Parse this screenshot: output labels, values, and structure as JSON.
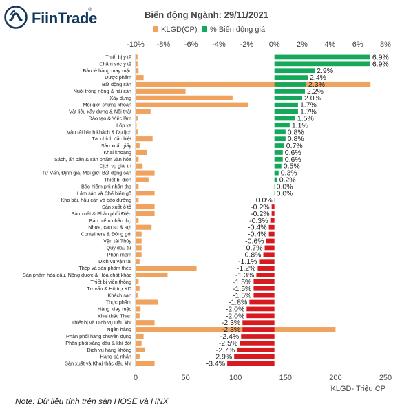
{
  "brand": {
    "name": "FiinTrade",
    "reg": "®"
  },
  "title": "Biến động Ngành: 29/11/2021",
  "note": "Note: Dữ liệu tính trên sàn HOSE và HNX",
  "colors": {
    "volume": "#f0a35e",
    "positive": "#14a85a",
    "negative": "#d71920",
    "brand": "#12375c"
  },
  "chart_data": {
    "type": "bar",
    "orientation": "horizontal",
    "legend_position": "top",
    "grid": false,
    "categories": [
      "Thiết bị y tế",
      "Chăm sóc y tế",
      "Bán lẻ hàng may mặc",
      "Dược phẩm",
      "Bất động sản",
      "Nuôi trồng nông & hải sản",
      "Xây dựng",
      "Môi giới chứng khoán",
      "Vật liệu xây dựng & Nội thất",
      "Đào tạo & Việc làm",
      "Lốp xe",
      "Vận tải hành khách & Du lịch",
      "Tài chính đặc biệt",
      "Sản xuất giấy",
      "Khai khoáng",
      "Sách, ấn bản & sản phẩm văn hóa",
      "Dịch vụ giải trí",
      "Tư Vấn, Định giá, Môi giới Bất động sản",
      "Thiết bị điện",
      "Bảo hiểm phi nhân thọ",
      "Lâm sản và Chế biến gỗ",
      "Kho bãi, hậu cần và bảo dưỡng",
      "Sản xuất ô tô",
      "Sản xuất & Phân phối Điện",
      "Bảo hiểm nhân thọ",
      "Nhựa, cao su & sợi",
      "Containers & Đóng gói",
      "Vận tải Thủy",
      "Quỹ đầu tư",
      "Phần mềm",
      "Dịch vụ vận tải",
      "Thép và sản phẩm thép",
      "Sản phẩm hóa dầu, Nông dược & Hóa chất khác",
      "Thiết bị viễn thông",
      "Tư vấn & Hỗ trợ KD",
      "Khách sạn",
      "Thực phẩm",
      "Hàng May mặc",
      "Khai thác Than",
      "Thiết bị và Dịch vụ Dầu khí",
      "Ngân hàng",
      "Phân phối hàng chuyên dụng",
      "Phân phối xăng dầu & khí đốt",
      "Dịch vụ hàng không",
      "Hàng cá nhân",
      "Sản xuất và Khai thác dầu khí"
    ],
    "series": [
      {
        "name": "KLGD(CP)",
        "axis": "bottom",
        "values": [
          2,
          2,
          3,
          8,
          235,
          50,
          97,
          113,
          15,
          2,
          1,
          2,
          17,
          4,
          11,
          3,
          7,
          19,
          13,
          3,
          19,
          3,
          19,
          19,
          3,
          16,
          6,
          6,
          6,
          6,
          4,
          61,
          32,
          3,
          4,
          2,
          22,
          5,
          4,
          19,
          200,
          8,
          6,
          9,
          4,
          19
        ]
      },
      {
        "name": "% Biến động giá",
        "axis": "top",
        "values": [
          6.9,
          6.9,
          2.9,
          2.4,
          2.3,
          2.2,
          2.0,
          1.7,
          1.7,
          1.5,
          1.1,
          0.8,
          0.8,
          0.7,
          0.6,
          0.6,
          0.5,
          0.3,
          0.2,
          0.0,
          0.0,
          0.0,
          -0.2,
          -0.2,
          -0.3,
          -0.4,
          -0.4,
          -0.6,
          -0.7,
          -0.8,
          -1.1,
          -1.2,
          -1.3,
          -1.5,
          -1.5,
          -1.5,
          -1.8,
          -2.0,
          -2.0,
          -2.3,
          -2.3,
          -2.4,
          -2.5,
          -2.7,
          -2.9,
          -3.4
        ],
        "labels": [
          "6.9%",
          "6.9%",
          "2.9%",
          "2.4%",
          "2.3%",
          "2.2%",
          "2.0%",
          "1.7%",
          "1.7%",
          "1.5%",
          "1.1%",
          "0.8%",
          "0.8%",
          "0.7%",
          "0.6%",
          "0.6%",
          "0.5%",
          "0.3%",
          "0.2%",
          "0.0%",
          "0.0%",
          "0.0%",
          "-0.2%",
          "-0.2%",
          "-0.3%",
          "-0.4%",
          "-0.4%",
          "-0.6%",
          "-0.7%",
          "-0.8%",
          "-1.1%",
          "-1.2%",
          "-1.3%",
          "-1.5%",
          "-1.5%",
          "-1.5%",
          "-1.8%",
          "-2.0%",
          "-2.0%",
          "-2.3%",
          "-2.3%",
          "-2.4%",
          "-2.5%",
          "-2.7%",
          "-2.9%",
          "-3.4%"
        ]
      }
    ],
    "top_axis": {
      "range": [
        -10,
        8
      ],
      "ticks": [
        -10,
        -8,
        -6,
        -4,
        -2,
        0,
        2,
        4,
        6,
        8
      ],
      "tick_labels": [
        "-10%",
        "-8%",
        "-6%",
        "-4%",
        "-2%",
        "0%",
        "2%",
        "4%",
        "6%",
        "8%"
      ]
    },
    "bottom_axis": {
      "range": [
        0,
        250
      ],
      "ticks": [
        0,
        50,
        100,
        150,
        200,
        250
      ],
      "tick_labels": [
        "0",
        "50",
        "100",
        "150",
        "200",
        "250"
      ],
      "label": "KLGD- Triệu CP"
    }
  }
}
